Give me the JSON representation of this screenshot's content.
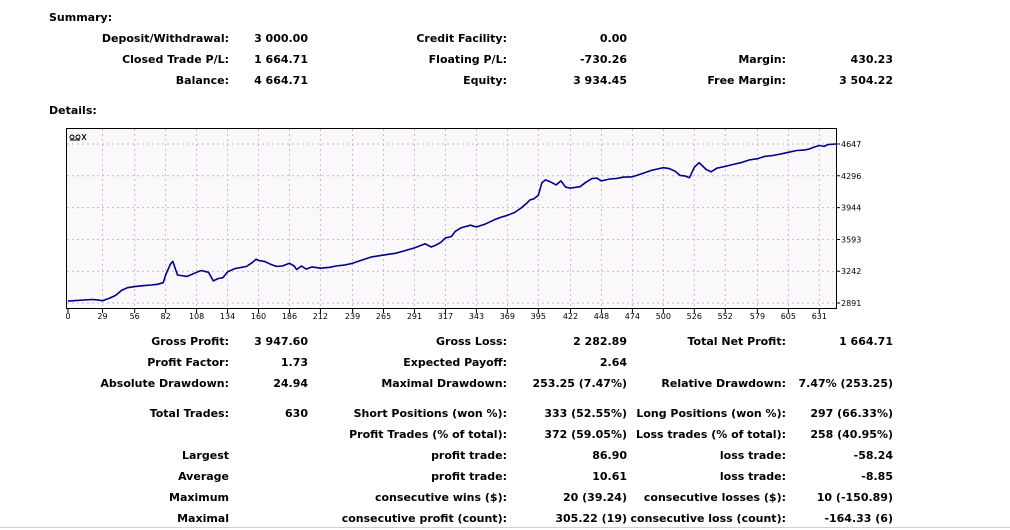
{
  "summary": {
    "heading": "Summary:",
    "deposit_withdrawal": {
      "label": "Deposit/Withdrawal:",
      "value": "3 000.00"
    },
    "credit_facility": {
      "label": "Credit Facility:",
      "value": "0.00"
    },
    "closed_trade_pl": {
      "label": "Closed Trade P/L:",
      "value": "1 664.71"
    },
    "floating_pl": {
      "label": "Floating P/L:",
      "value": "-730.26"
    },
    "margin": {
      "label": "Margin:",
      "value": "430.23"
    },
    "balance": {
      "label": "Balance:",
      "value": "4 664.71"
    },
    "equity": {
      "label": "Equity:",
      "value": "3 934.45"
    },
    "free_margin": {
      "label": "Free Margin:",
      "value": "3 504.22"
    }
  },
  "details": {
    "heading": "Details:",
    "gross_profit": {
      "label": "Gross Profit:",
      "value": "3 947.60"
    },
    "gross_loss": {
      "label": "Gross Loss:",
      "value": "2 282.89"
    },
    "total_net_profit": {
      "label": "Total Net Profit:",
      "value": "1 664.71"
    },
    "profit_factor": {
      "label": "Profit Factor:",
      "value": "1.73"
    },
    "expected_payoff": {
      "label": "Expected Payoff:",
      "value": "2.64"
    },
    "absolute_drawdown": {
      "label": "Absolute Drawdown:",
      "value": "24.94"
    },
    "maximal_drawdown": {
      "label": "Maximal Drawdown:",
      "value": "253.25 (7.47%)"
    },
    "relative_drawdown": {
      "label": "Relative Drawdown:",
      "value": "7.47% (253.25)"
    },
    "total_trades": {
      "label": "Total Trades:",
      "value": "630"
    },
    "short_positions": {
      "label": "Short Positions (won %):",
      "value": "333 (52.55%)"
    },
    "long_positions": {
      "label": "Long Positions (won %):",
      "value": "297 (66.33%)"
    },
    "profit_trades": {
      "label": "Profit Trades (% of total):",
      "value": "372 (59.05%)"
    },
    "loss_trades": {
      "label": "Loss trades (% of total):",
      "value": "258 (40.95%)"
    },
    "largest": {
      "label": "Largest",
      "profit_label": "profit trade:",
      "profit_value": "86.90",
      "loss_label": "loss trade:",
      "loss_value": "-58.24"
    },
    "average": {
      "label": "Average",
      "profit_label": "profit trade:",
      "profit_value": "10.61",
      "loss_label": "loss trade:",
      "loss_value": "-8.85"
    },
    "maximum": {
      "label": "Maximum",
      "profit_label": "consecutive wins ($):",
      "profit_value": "20 (39.24)",
      "loss_label": "consecutive losses ($):",
      "loss_value": "10 (-150.89)"
    },
    "maximal": {
      "label": "Maximal",
      "profit_label": "consecutive profit (count):",
      "profit_value": "305.22 (19)",
      "loss_label": "consecutive loss (count):",
      "loss_value": "-164.33 (6)"
    }
  },
  "chart_data": {
    "type": "line",
    "title": "",
    "xlabel": "",
    "ylabel": "",
    "xlim": [
      0,
      645
    ],
    "ylim": [
      2891,
      4647
    ],
    "x_ticks": [
      0,
      29,
      56,
      82,
      108,
      134,
      160,
      186,
      212,
      239,
      265,
      291,
      317,
      343,
      369,
      395,
      422,
      448,
      474,
      500,
      526,
      552,
      579,
      605,
      631
    ],
    "y_ticks": [
      2891,
      3242,
      3593,
      3944,
      4296,
      4647
    ],
    "grid": true,
    "line_color": "#00008b",
    "grid_color": "#c8b8c8",
    "series": [
      {
        "x": [
          0,
          20,
          25,
          29,
          35,
          40,
          45,
          50,
          56,
          65,
          70,
          75,
          80,
          82,
          86,
          88,
          92,
          100,
          108,
          112,
          118,
          122,
          126,
          130,
          134,
          140,
          150,
          155,
          158,
          160,
          165,
          170,
          175,
          180,
          186,
          190,
          192,
          196,
          200,
          205,
          212,
          220,
          225,
          232,
          239,
          248,
          255,
          265,
          275,
          282,
          291,
          296,
          300,
          305,
          309,
          313,
          317,
          322,
          325,
          330,
          338,
          343,
          350,
          358,
          363,
          369,
          375,
          380,
          385,
          388,
          391,
          395,
          398,
          401,
          405,
          410,
          414,
          418,
          422,
          430,
          435,
          440,
          444,
          448,
          455,
          460,
          466,
          474,
          480,
          490,
          500,
          505,
          510,
          514,
          518,
          522,
          526,
          530,
          536,
          540,
          545,
          552,
          558,
          565,
          572,
          579,
          585,
          592,
          598,
          605,
          612,
          618,
          622,
          626,
          631,
          635,
          638,
          645
        ],
        "values": [
          2912,
          2930,
          2925,
          2915,
          2945,
          2975,
          3030,
          3060,
          3072,
          3085,
          3090,
          3098,
          3115,
          3200,
          3320,
          3350,
          3200,
          3185,
          3230,
          3250,
          3230,
          3135,
          3160,
          3170,
          3235,
          3270,
          3295,
          3340,
          3375,
          3360,
          3350,
          3320,
          3295,
          3300,
          3330,
          3300,
          3260,
          3300,
          3265,
          3290,
          3275,
          3285,
          3300,
          3310,
          3330,
          3370,
          3400,
          3420,
          3440,
          3465,
          3500,
          3525,
          3545,
          3510,
          3530,
          3560,
          3610,
          3625,
          3680,
          3720,
          3750,
          3730,
          3760,
          3810,
          3835,
          3860,
          3890,
          3935,
          3990,
          4030,
          4040,
          4080,
          4220,
          4250,
          4230,
          4195,
          4240,
          4170,
          4160,
          4175,
          4225,
          4265,
          4270,
          4240,
          4260,
          4265,
          4280,
          4285,
          4310,
          4355,
          4385,
          4375,
          4345,
          4300,
          4295,
          4275,
          4390,
          4440,
          4365,
          4340,
          4380,
          4400,
          4420,
          4440,
          4470,
          4485,
          4510,
          4520,
          4535,
          4555,
          4575,
          4580,
          4590,
          4610,
          4630,
          4620,
          4640,
          4647
        ]
      }
    ]
  }
}
